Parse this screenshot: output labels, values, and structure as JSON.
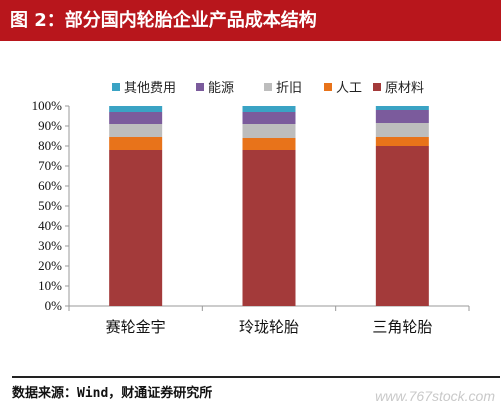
{
  "header": {
    "title": "图 2：部分国内轮胎企业产品成本结构"
  },
  "footer": {
    "source": "数据来源：Wind，财通证券研究所",
    "watermark": "www.767stock.com"
  },
  "chart_data": {
    "type": "bar",
    "stacked": true,
    "categories": [
      "赛轮金宇",
      "玲珑轮胎",
      "三角轮胎"
    ],
    "series": [
      {
        "name": "原材料",
        "color": "#a33a3a",
        "values": [
          78,
          78,
          80
        ]
      },
      {
        "name": "人工",
        "color": "#e8731a",
        "values": [
          6.5,
          6,
          4.5
        ]
      },
      {
        "name": "折旧",
        "color": "#bdbdbd",
        "values": [
          6.5,
          7,
          7
        ]
      },
      {
        "name": "能源",
        "color": "#7b5b9c",
        "values": [
          6,
          6,
          6.5
        ]
      },
      {
        "name": "其他费用",
        "color": "#3aa3c4",
        "values": [
          3,
          3,
          2
        ]
      }
    ],
    "legend_order": [
      "其他费用",
      "能源",
      "折旧",
      "人工",
      "原材料"
    ],
    "legend_position": "top",
    "ylim": [
      0,
      100
    ],
    "yticks": [
      "0%",
      "10%",
      "20%",
      "30%",
      "40%",
      "50%",
      "60%",
      "70%",
      "80%",
      "90%",
      "100%"
    ],
    "grid": false
  }
}
